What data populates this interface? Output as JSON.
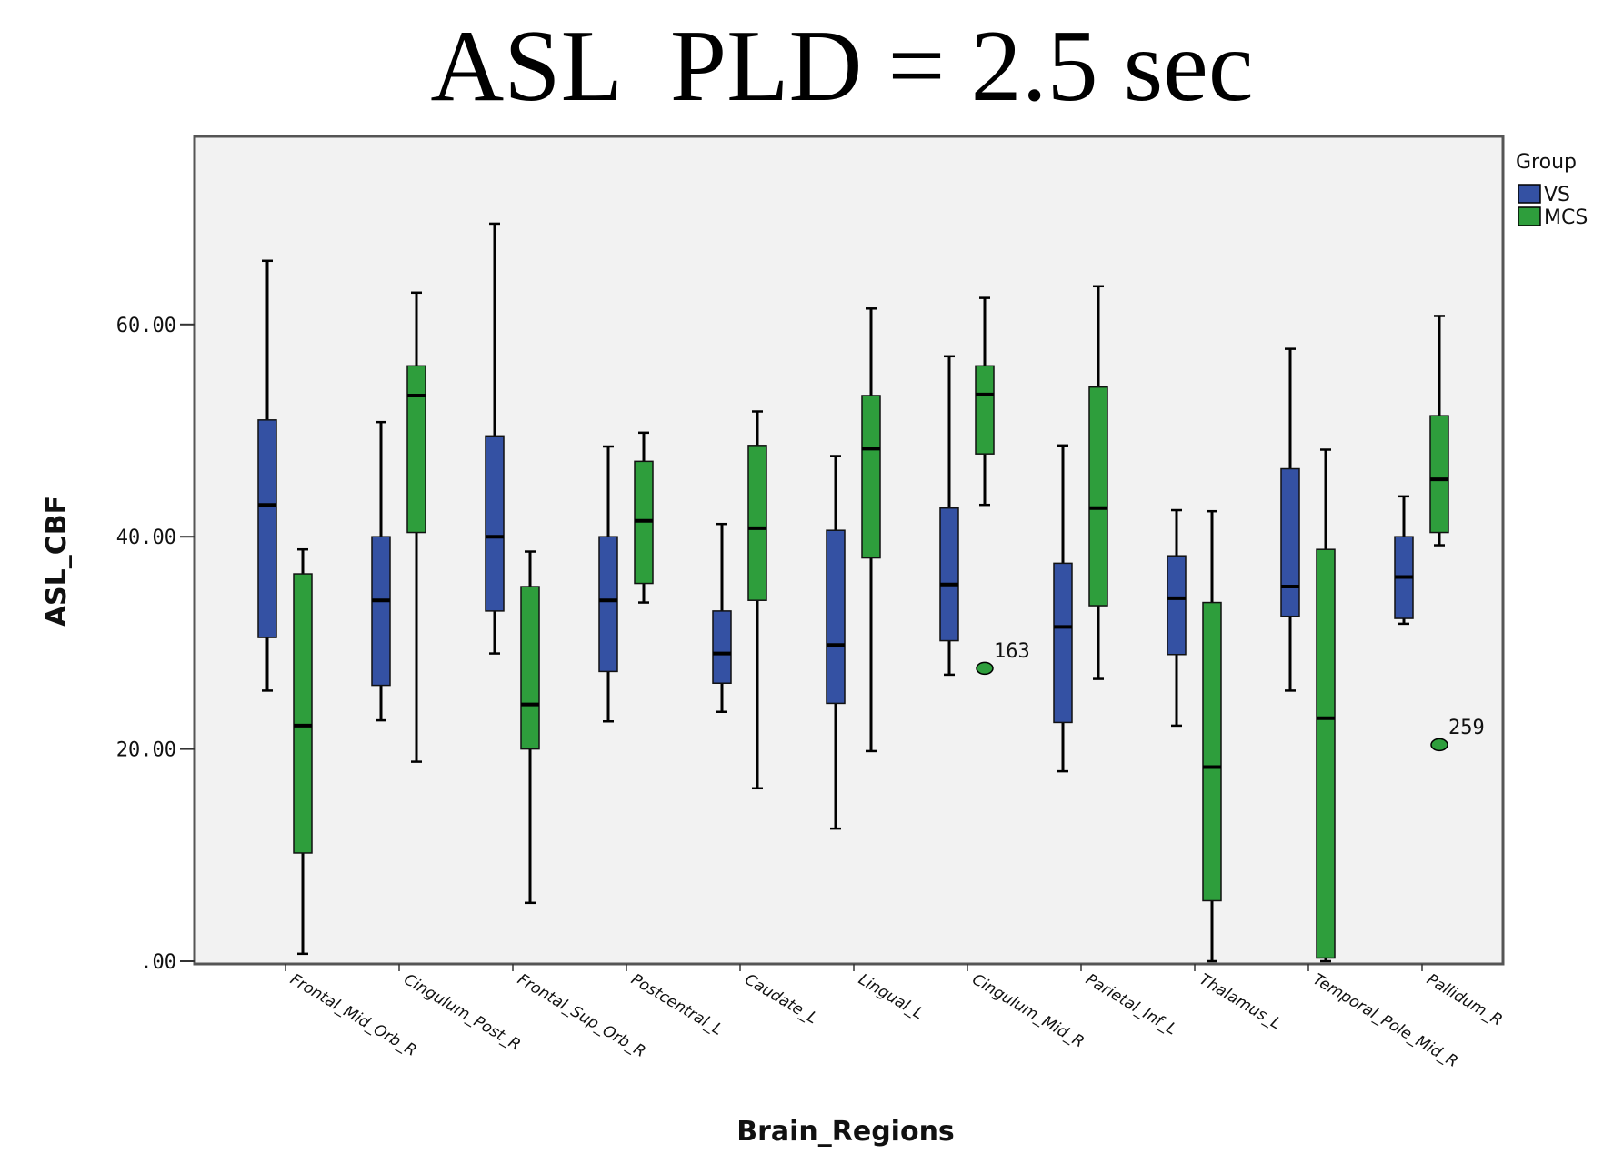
{
  "chart_data": {
    "type": "box",
    "title": "ASL  PLD = 2.5 sec",
    "xlabel": "Brain_Regions",
    "ylabel": "ASL_CBF",
    "ylim": [
      0,
      75
    ],
    "yticks": [
      0,
      20,
      40,
      60
    ],
    "ytick_labels": [
      ".00",
      "20.00",
      "40.00",
      "60.00"
    ],
    "grid": false,
    "legend": {
      "title": "Group",
      "position": "top-right"
    },
    "categories": [
      "Frontal_Mid_Orb_R",
      "Cingulum_Post_R",
      "Frontal_Sup_Orb_R",
      "Postcentral_L",
      "Caudate_L",
      "Lingual_L",
      "Cingulum_Mid_R",
      "Parietal_Inf_L",
      "Thalamus_L",
      "Temporal_Pole_Mid_R",
      "Pallidum_R"
    ],
    "series": [
      {
        "name": "VS",
        "color": "#3451a3",
        "boxes": [
          {
            "min": 25.5,
            "q1": 30.5,
            "median": 43.0,
            "q3": 51.0,
            "max": 66.0
          },
          {
            "min": 22.7,
            "q1": 26.0,
            "median": 34.0,
            "q3": 40.0,
            "max": 50.8
          },
          {
            "min": 29.0,
            "q1": 33.0,
            "median": 40.0,
            "q3": 49.5,
            "max": 69.5
          },
          {
            "min": 22.6,
            "q1": 27.3,
            "median": 34.0,
            "q3": 40.0,
            "max": 48.5
          },
          {
            "min": 23.5,
            "q1": 26.2,
            "median": 29.0,
            "q3": 33.0,
            "max": 41.2
          },
          {
            "min": 12.5,
            "q1": 24.3,
            "median": 29.8,
            "q3": 40.6,
            "max": 47.6
          },
          {
            "min": 27.0,
            "q1": 30.2,
            "median": 35.5,
            "q3": 42.7,
            "max": 57.0
          },
          {
            "min": 17.9,
            "q1": 22.5,
            "median": 31.5,
            "q3": 37.5,
            "max": 48.6
          },
          {
            "min": 22.2,
            "q1": 28.9,
            "median": 34.2,
            "q3": 38.2,
            "max": 42.5
          },
          {
            "min": 25.5,
            "q1": 32.5,
            "median": 35.3,
            "q3": 46.4,
            "max": 57.7
          },
          {
            "min": 31.8,
            "q1": 32.3,
            "median": 36.2,
            "q3": 40.0,
            "max": 43.8
          }
        ]
      },
      {
        "name": "MCS",
        "color": "#2e9e3c",
        "boxes": [
          {
            "min": 0.7,
            "q1": 10.2,
            "median": 22.2,
            "q3": 36.5,
            "max": 38.8
          },
          {
            "min": 18.8,
            "q1": 40.4,
            "median": 53.3,
            "q3": 56.1,
            "max": 63.0
          },
          {
            "min": 5.5,
            "q1": 20.0,
            "median": 24.2,
            "q3": 35.3,
            "max": 38.6
          },
          {
            "min": 33.8,
            "q1": 35.6,
            "median": 41.5,
            "q3": 47.1,
            "max": 49.8
          },
          {
            "min": 16.3,
            "q1": 34.0,
            "median": 40.8,
            "q3": 48.6,
            "max": 51.8
          },
          {
            "min": 19.8,
            "q1": 38.0,
            "median": 48.3,
            "q3": 53.3,
            "max": 61.5
          },
          {
            "min": 43.0,
            "q1": 47.8,
            "median": 53.4,
            "q3": 56.1,
            "max": 62.5,
            "outliers": [
              {
                "value": 27.6,
                "label": "163"
              }
            ]
          },
          {
            "min": 26.6,
            "q1": 33.5,
            "median": 42.7,
            "q3": 54.1,
            "max": 63.6
          },
          {
            "min": 0.0,
            "q1": 5.7,
            "median": 18.3,
            "q3": 33.8,
            "max": 42.4
          },
          {
            "min": 0.0,
            "q1": 0.3,
            "median": 22.9,
            "q3": 38.8,
            "max": 48.2
          },
          {
            "min": 39.2,
            "q1": 40.4,
            "median": 45.4,
            "q3": 51.4,
            "max": 60.8,
            "outliers": [
              {
                "value": 20.4,
                "label": "259"
              }
            ]
          }
        ]
      }
    ]
  }
}
